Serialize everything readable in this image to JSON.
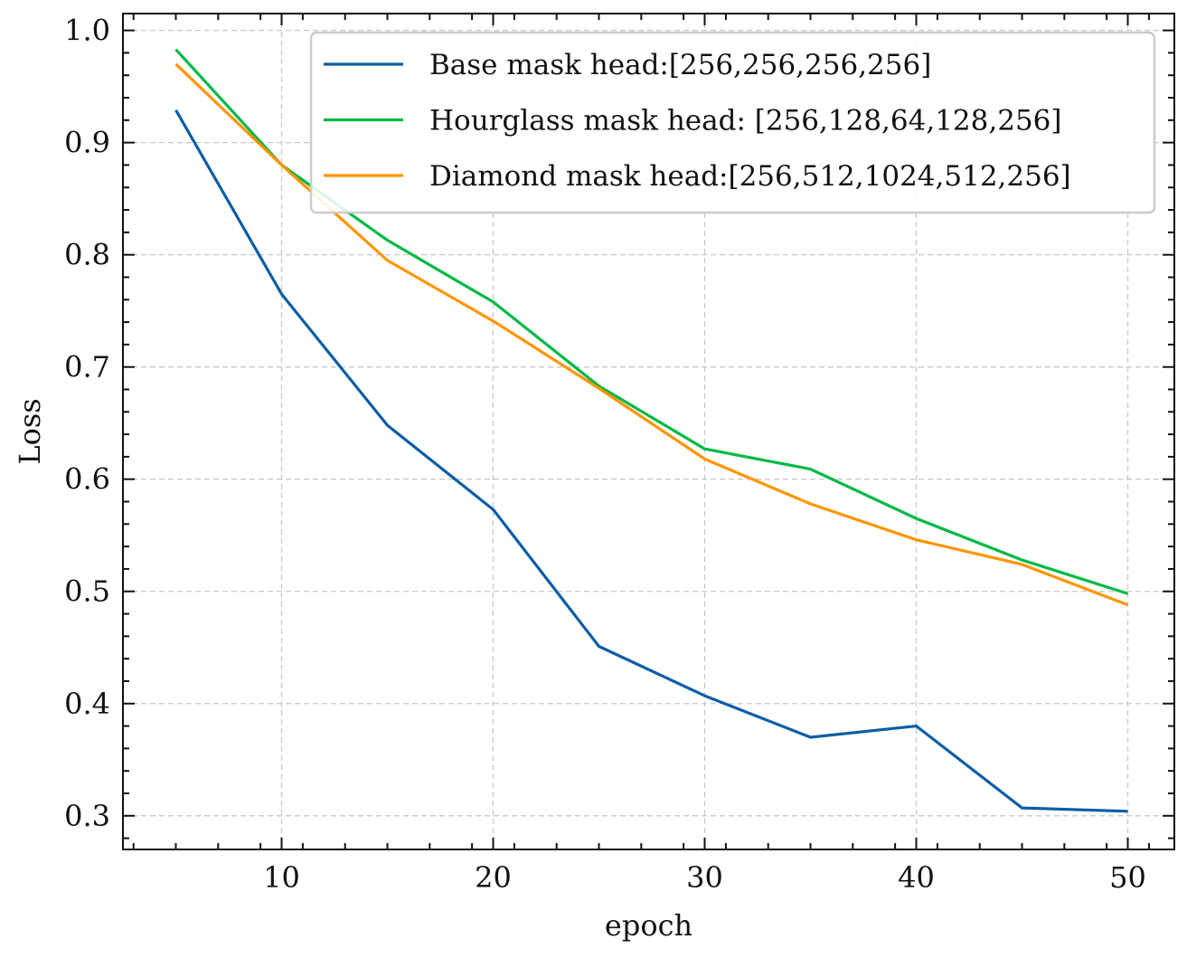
{
  "chart_data": {
    "type": "line",
    "xlabel": "epoch",
    "ylabel": "Loss",
    "x": [
      5,
      10,
      15,
      20,
      25,
      30,
      35,
      40,
      45,
      50
    ],
    "xlim": [
      2.5,
      52.2
    ],
    "ylim": [
      0.27,
      1.015
    ],
    "xticks": [
      10,
      20,
      30,
      40,
      50
    ],
    "xtick_labels": [
      "10",
      "20",
      "30",
      "40",
      "50"
    ],
    "yticks": [
      0.3,
      0.4,
      0.5,
      0.6,
      0.7,
      0.8,
      0.9,
      1.0
    ],
    "ytick_labels": [
      "0.3",
      "0.4",
      "0.5",
      "0.6",
      "0.7",
      "0.8",
      "0.9",
      "1.0"
    ],
    "grid": true,
    "legend_position": "top-right",
    "series": [
      {
        "name": "Base mask head:[256,256,256,256]",
        "color": "#0c5da5",
        "values": [
          0.929,
          0.765,
          0.648,
          0.573,
          0.451,
          0.407,
          0.37,
          0.38,
          0.307,
          0.304
        ]
      },
      {
        "name": "Hourglass mask head: [256,128,64,128,256]",
        "color": "#00b945",
        "values": [
          0.983,
          0.88,
          0.813,
          0.758,
          0.683,
          0.627,
          0.609,
          0.565,
          0.528,
          0.498
        ]
      },
      {
        "name": "Diamond mask head:[256,512,1024,512,256]",
        "color": "#ff9500",
        "values": [
          0.97,
          0.88,
          0.795,
          0.741,
          0.681,
          0.618,
          0.578,
          0.546,
          0.524,
          0.488
        ]
      }
    ]
  }
}
